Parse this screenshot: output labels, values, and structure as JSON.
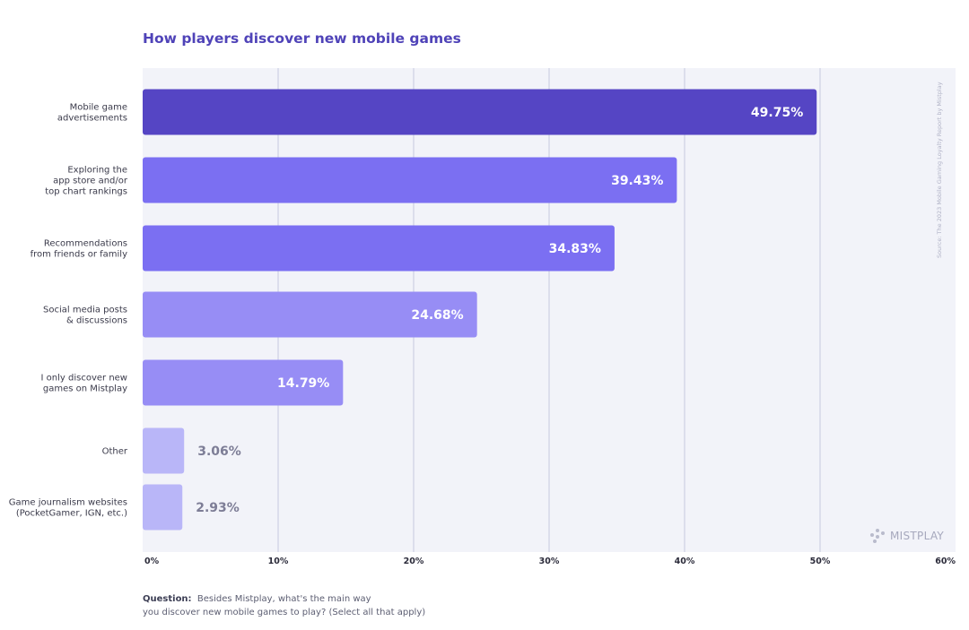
{
  "title": "How players discover new mobile games",
  "source": "Source: The 2023 Mobile Gaming Loyalty Report by Mistplay",
  "brand": "MISTPLAY",
  "question": {
    "label": "Question:",
    "text_line1": "Besides Mistplay, what's the main way",
    "text_line2": "you discover new mobile games to play? (Select all that apply)"
  },
  "colors": {
    "title": "#4f43b8",
    "plot_bg": "#f2f3f9",
    "gridline": "#cdd0e4",
    "bars": [
      "#5545c4",
      "#7b6ff2",
      "#7b6ff2",
      "#978df5",
      "#978df5",
      "#b9b6f8",
      "#b9b6f8"
    ]
  },
  "chart_data": {
    "type": "bar",
    "orientation": "horizontal",
    "title": "How players discover new mobile games",
    "categories": [
      [
        "Mobile game",
        "advertisements"
      ],
      [
        "Exploring the",
        "app store and/or",
        "top chart rankings"
      ],
      [
        "Recommendations",
        "from friends or family"
      ],
      [
        "Social media posts",
        "& discussions"
      ],
      [
        "I only discover new",
        "games on Mistplay"
      ],
      [
        "Other"
      ],
      [
        "Game journalism websites",
        "(PocketGamer, IGN, etc.)"
      ]
    ],
    "values": [
      49.75,
      39.43,
      34.83,
      24.68,
      14.79,
      3.06,
      2.93
    ],
    "value_labels": [
      "49.75%",
      "39.43%",
      "34.83%",
      "24.68%",
      "14.79%",
      "3.06%",
      "2.93%"
    ],
    "label_inside": [
      true,
      true,
      true,
      true,
      true,
      false,
      false
    ],
    "xlim": [
      0,
      60
    ],
    "xticks": [
      0,
      10,
      20,
      30,
      40,
      50,
      60
    ],
    "xtick_labels": [
      "0%",
      "10%",
      "20%",
      "30%",
      "40%",
      "50%",
      "60%"
    ],
    "grid": "vertical",
    "xlabel": "",
    "ylabel": ""
  }
}
